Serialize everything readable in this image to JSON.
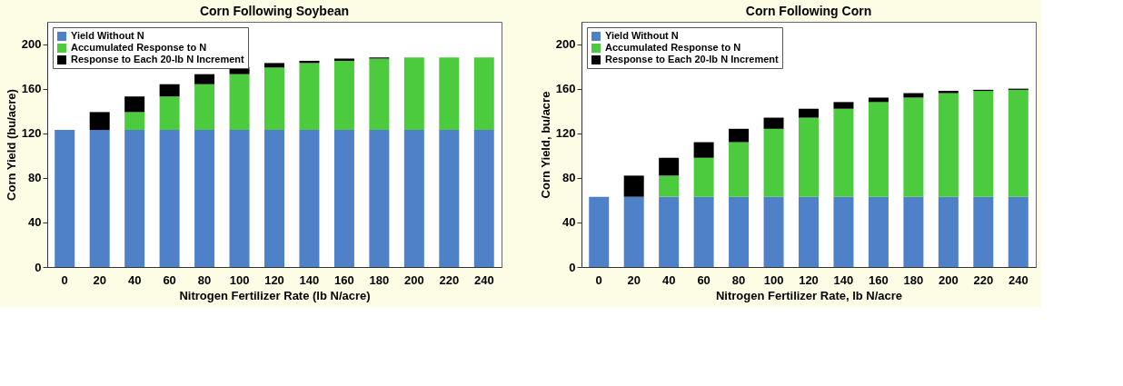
{
  "chart_data": [
    {
      "type": "bar",
      "title": "Corn Following Soybean",
      "xlabel": "Nitrogen Fertilizer Rate (lb N/acre)",
      "ylabel": "Corn Yield (bu/acre)",
      "categories": [
        "0",
        "20",
        "40",
        "60",
        "80",
        "100",
        "120",
        "140",
        "160",
        "180",
        "200",
        "220",
        "240"
      ],
      "stacked": true,
      "ylim": [
        0,
        220
      ],
      "yticks": [
        0,
        40,
        80,
        120,
        160,
        200
      ],
      "grid": false,
      "legend": "top left",
      "series": [
        {
          "name": "Yield Without N",
          "color": "#4f81c8",
          "values": [
            123,
            123,
            123,
            123,
            123,
            123,
            123,
            123,
            123,
            123,
            123,
            123,
            123
          ]
        },
        {
          "name": "Accumulated Response to N",
          "color": "#4ccb3e",
          "values": [
            0,
            0,
            16,
            30,
            41,
            50,
            56,
            60,
            62,
            64,
            65,
            65,
            65
          ]
        },
        {
          "name": "Response to Each 20-lb N Increment",
          "color": "#000000",
          "values": [
            0,
            16,
            14,
            11,
            9,
            6,
            4,
            2,
            2,
            1,
            null,
            null,
            null
          ]
        }
      ]
    },
    {
      "type": "bar",
      "title": "Corn Following Corn",
      "xlabel": "Nitrogen Fertilizer Rate, lb N/acre",
      "ylabel": "Corn Yield, bu/acre",
      "categories": [
        "0",
        "20",
        "40",
        "60",
        "80",
        "100",
        "120",
        "140",
        "160",
        "180",
        "200",
        "220",
        "240"
      ],
      "stacked": true,
      "ylim": [
        0,
        220
      ],
      "yticks": [
        0,
        40,
        80,
        120,
        160,
        200
      ],
      "grid": false,
      "legend": "top left",
      "series": [
        {
          "name": "Yield Without N",
          "color": "#4f81c8",
          "values": [
            63,
            63,
            63,
            63,
            63,
            63,
            63,
            63,
            63,
            63,
            63,
            63,
            63
          ]
        },
        {
          "name": "Accumulated Response to N",
          "color": "#4ccb3e",
          "values": [
            0,
            0,
            19,
            35,
            49,
            61,
            71,
            79,
            85,
            89,
            93,
            95,
            96
          ]
        },
        {
          "name": "Response to Each 20-lb N Increment",
          "color": "#000000",
          "values": [
            0,
            19,
            16,
            14,
            12,
            10,
            8,
            6,
            4,
            4,
            2,
            1,
            1
          ]
        }
      ]
    }
  ]
}
